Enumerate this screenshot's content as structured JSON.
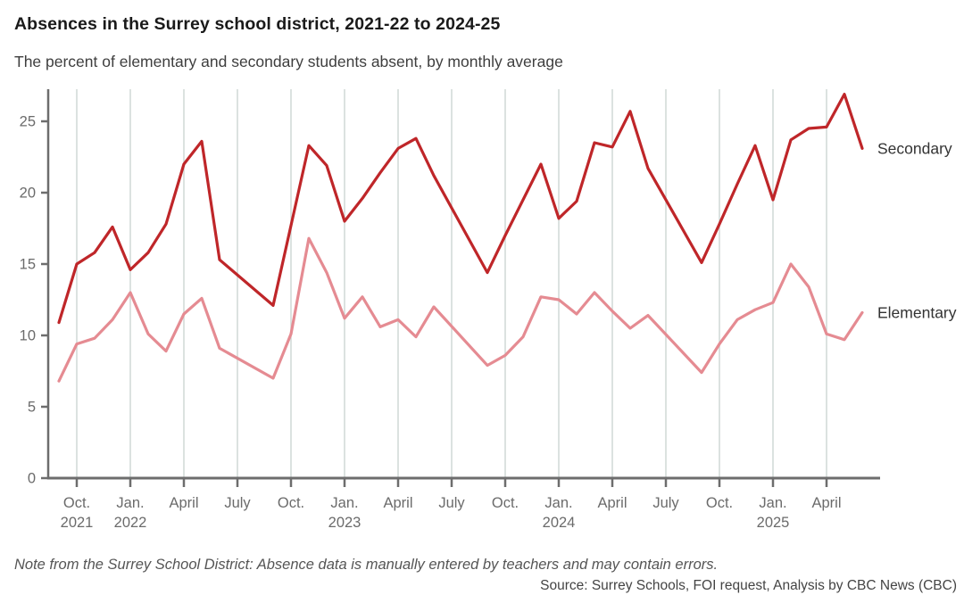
{
  "header": {
    "title": "Absences in the Surrey school district, 2021-22 to 2024-25",
    "subtitle": "The percent of elementary and secondary students absent, by monthly average"
  },
  "footer": {
    "note": "Note from the Surrey School District: Absence data is manually entered by teachers and may contain errors.",
    "source": "Source: Surrey Schools, FOI request, Analysis by CBC News (CBC)"
  },
  "colors": {
    "secondary_line": "#bf2629",
    "elementary_line": "#e58b92",
    "gridline": "#ccd5d2",
    "axis": "#6d6d6d",
    "tick_label": "#6b6b6b",
    "series_label": "#333333",
    "title": "#1a1a1a",
    "subtitle": "#3e3e3e"
  },
  "chart_data": {
    "type": "line",
    "title": "Absences in the Surrey school district, 2021-22 to 2024-25",
    "xlabel": "",
    "ylabel": "",
    "grid": "vertical-only",
    "legend_position": "right-of-line-ends",
    "x_axis_note": "month_index counts months since Sep 2021; school-year lines connect June to September directly (no July/August data points)",
    "x_ticks": [
      {
        "label": "Oct.",
        "year": "2021",
        "month_index": 1
      },
      {
        "label": "Jan.",
        "year": "2022",
        "month_index": 4
      },
      {
        "label": "April",
        "month_index": 7
      },
      {
        "label": "July",
        "month_index": 10
      },
      {
        "label": "Oct.",
        "month_index": 13
      },
      {
        "label": "Jan.",
        "year": "2023",
        "month_index": 16
      },
      {
        "label": "April",
        "month_index": 19
      },
      {
        "label": "July",
        "month_index": 22
      },
      {
        "label": "Oct.",
        "month_index": 25
      },
      {
        "label": "Jan.",
        "year": "2024",
        "month_index": 28
      },
      {
        "label": "April",
        "month_index": 31
      },
      {
        "label": "July",
        "month_index": 34
      },
      {
        "label": "Oct.",
        "month_index": 37
      },
      {
        "label": "Jan.",
        "year": "2025",
        "month_index": 40
      },
      {
        "label": "April",
        "month_index": 43
      }
    ],
    "y_axis": {
      "ticks": [
        0,
        5,
        10,
        15,
        20,
        25
      ],
      "min": 0,
      "max": 27.3
    },
    "series": [
      {
        "name": "Secondary",
        "color": "#bf2629",
        "points": [
          [
            0,
            10.9
          ],
          [
            1,
            15.0
          ],
          [
            2,
            15.8
          ],
          [
            3,
            17.6
          ],
          [
            4,
            14.6
          ],
          [
            5,
            15.8
          ],
          [
            6,
            17.8
          ],
          [
            7,
            22.0
          ],
          [
            8,
            23.6
          ],
          [
            9,
            15.3
          ],
          [
            12,
            12.1
          ],
          [
            13,
            17.7
          ],
          [
            14,
            23.3
          ],
          [
            15,
            21.9
          ],
          [
            16,
            18.0
          ],
          [
            17,
            19.6
          ],
          [
            18,
            21.4
          ],
          [
            19,
            23.1
          ],
          [
            20,
            23.8
          ],
          [
            21,
            21.2
          ],
          [
            24,
            14.4
          ],
          [
            25,
            17.0
          ],
          [
            26,
            19.5
          ],
          [
            27,
            22.0
          ],
          [
            28,
            18.2
          ],
          [
            29,
            19.4
          ],
          [
            30,
            23.5
          ],
          [
            31,
            23.2
          ],
          [
            32,
            25.7
          ],
          [
            33,
            21.7
          ],
          [
            36,
            15.1
          ],
          [
            37,
            17.8
          ],
          [
            38,
            20.6
          ],
          [
            39,
            23.3
          ],
          [
            40,
            19.5
          ],
          [
            41,
            23.7
          ],
          [
            42,
            24.5
          ],
          [
            43,
            24.6
          ],
          [
            44,
            26.9
          ],
          [
            45,
            23.1
          ]
        ]
      },
      {
        "name": "Elementary",
        "color": "#e58b92",
        "points": [
          [
            0,
            6.8
          ],
          [
            1,
            9.4
          ],
          [
            2,
            9.8
          ],
          [
            3,
            11.1
          ],
          [
            4,
            13.0
          ],
          [
            5,
            10.1
          ],
          [
            6,
            8.9
          ],
          [
            7,
            11.5
          ],
          [
            8,
            12.6
          ],
          [
            9,
            9.1
          ],
          [
            12,
            7.0
          ],
          [
            13,
            10.1
          ],
          [
            14,
            16.8
          ],
          [
            15,
            14.4
          ],
          [
            16,
            11.2
          ],
          [
            17,
            12.7
          ],
          [
            18,
            10.6
          ],
          [
            19,
            11.1
          ],
          [
            20,
            9.9
          ],
          [
            21,
            12.0
          ],
          [
            24,
            7.9
          ],
          [
            25,
            8.6
          ],
          [
            26,
            9.9
          ],
          [
            27,
            12.7
          ],
          [
            28,
            12.5
          ],
          [
            29,
            11.5
          ],
          [
            30,
            13.0
          ],
          [
            31,
            11.7
          ],
          [
            32,
            10.5
          ],
          [
            33,
            11.4
          ],
          [
            36,
            7.4
          ],
          [
            37,
            9.4
          ],
          [
            38,
            11.1
          ],
          [
            39,
            11.8
          ],
          [
            40,
            12.3
          ],
          [
            41,
            15.0
          ],
          [
            42,
            13.4
          ],
          [
            43,
            10.1
          ],
          [
            44,
            9.7
          ],
          [
            45,
            11.6
          ]
        ]
      }
    ]
  }
}
